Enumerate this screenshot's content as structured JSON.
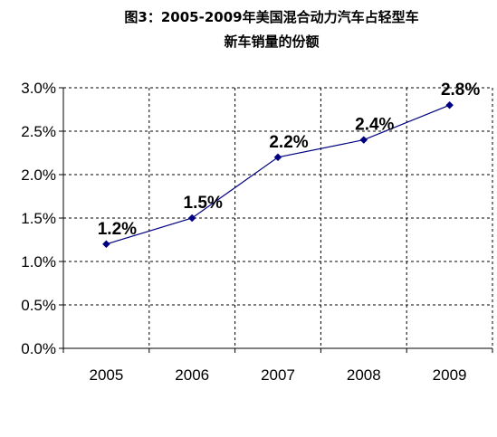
{
  "chart_data": {
    "type": "line",
    "title_lines": [
      "图3：2005-2009年美国混合动力汽车占轻型车",
      "新车销量的份额"
    ],
    "categories": [
      "2005",
      "2006",
      "2007",
      "2008",
      "2009"
    ],
    "series": [
      {
        "values": [
          1.2,
          1.5,
          2.2,
          2.4,
          2.8
        ],
        "data_labels": [
          "1.2%",
          "1.5%",
          "2.2%",
          "2.4%",
          "2.8%"
        ],
        "color": "#000080"
      }
    ],
    "y_ticks": [
      "0.0%",
      "0.5%",
      "1.0%",
      "1.5%",
      "2.0%",
      "2.5%",
      "3.0%"
    ],
    "ylim": [
      0,
      3.0
    ],
    "grid": "dashed",
    "legend": "none"
  }
}
